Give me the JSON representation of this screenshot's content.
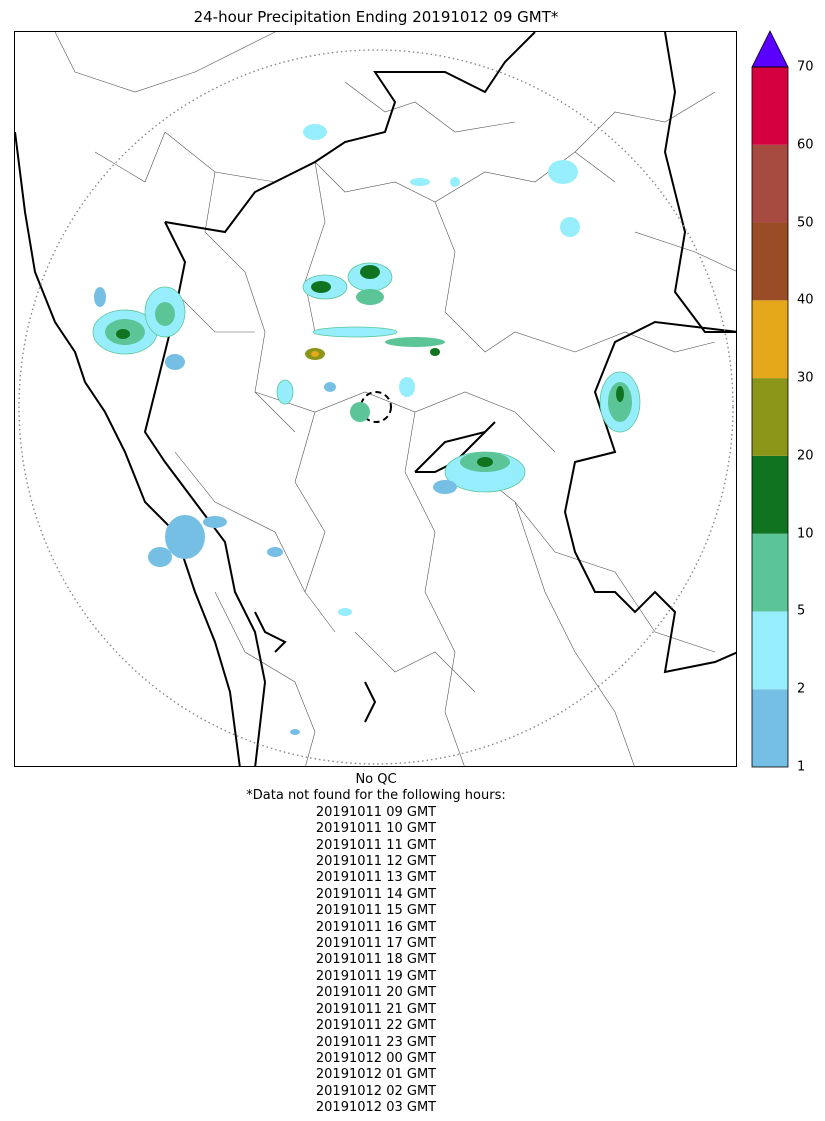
{
  "title": "24-hour Precipitation Ending 20191012 09 GMT*",
  "colorbar": {
    "ticks": [
      "1",
      "2",
      "5",
      "10",
      "20",
      "30",
      "40",
      "50",
      "60",
      "70"
    ],
    "colors": [
      "#75bfe4",
      "#96eefc",
      "#5cc597",
      "#0f7320",
      "#8b9618",
      "#e5a81b",
      "#9a4c27",
      "#a74a3f",
      "#d5003f"
    ],
    "extend_color": "#5a00ff",
    "extend": "max"
  },
  "footer": {
    "qc_note": "No QC",
    "missing_header": "*Data not found for the following hours:",
    "missing_hours": [
      "20191011 09 GMT",
      "20191011 10 GMT",
      "20191011 11 GMT",
      "20191011 12 GMT",
      "20191011 13 GMT",
      "20191011 14 GMT",
      "20191011 15 GMT",
      "20191011 16 GMT",
      "20191011 17 GMT",
      "20191011 18 GMT",
      "20191011 19 GMT",
      "20191011 20 GMT",
      "20191011 21 GMT",
      "20191011 22 GMT",
      "20191011 23 GMT",
      "20191012 00 GMT",
      "20191012 01 GMT",
      "20191012 02 GMT",
      "20191012 03 GMT"
    ]
  },
  "map": {
    "range_ring": "dotted",
    "radar_site_marker": "dashed-circle",
    "precip_cells": [
      {
        "area": "north-center band",
        "level": "20-30"
      },
      {
        "area": "west coast cluster",
        "level": "10-20"
      },
      {
        "area": "southwest coast",
        "level": "1-2"
      },
      {
        "area": "east cluster",
        "level": "10-20"
      },
      {
        "area": "east-center band",
        "level": "10-20"
      }
    ]
  }
}
